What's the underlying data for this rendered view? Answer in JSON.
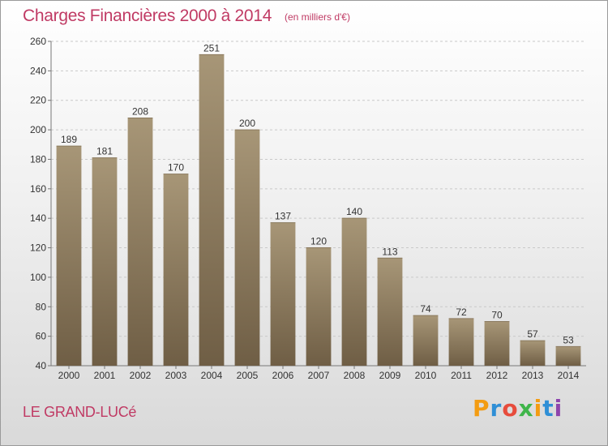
{
  "header": {
    "title": "Charges Financières 2000 à 2014",
    "subtitle": "(en milliers d'€)"
  },
  "footer": {
    "town": "LE GRAND-LUCé",
    "brand": "Proxiti",
    "brand_colors": [
      "#f39c12",
      "#2f8fd6",
      "#e74c3c",
      "#3fb54a",
      "#f39c12",
      "#2f8fd6",
      "#8e44ad"
    ]
  },
  "colors": {
    "title": "#c03a64",
    "bar_top": "#a79677",
    "bar_bottom": "#6f5e45",
    "grid": "#c9c9c9",
    "axis_text": "#333333"
  },
  "chart_data": {
    "type": "bar",
    "title": "Charges Financières 2000 à 2014",
    "subtitle": "(en milliers d'€)",
    "xlabel": "",
    "ylabel": "",
    "categories": [
      "2000",
      "2001",
      "2002",
      "2003",
      "2004",
      "2005",
      "2006",
      "2007",
      "2008",
      "2009",
      "2010",
      "2011",
      "2012",
      "2013",
      "2014"
    ],
    "values": [
      189,
      181,
      208,
      170,
      251,
      200,
      137,
      120,
      140,
      113,
      74,
      72,
      70,
      57,
      53
    ],
    "ylim": [
      40,
      260
    ],
    "yticks": [
      40,
      60,
      80,
      100,
      120,
      140,
      160,
      180,
      200,
      220,
      240,
      260
    ],
    "grid": true,
    "data_labels": true
  }
}
